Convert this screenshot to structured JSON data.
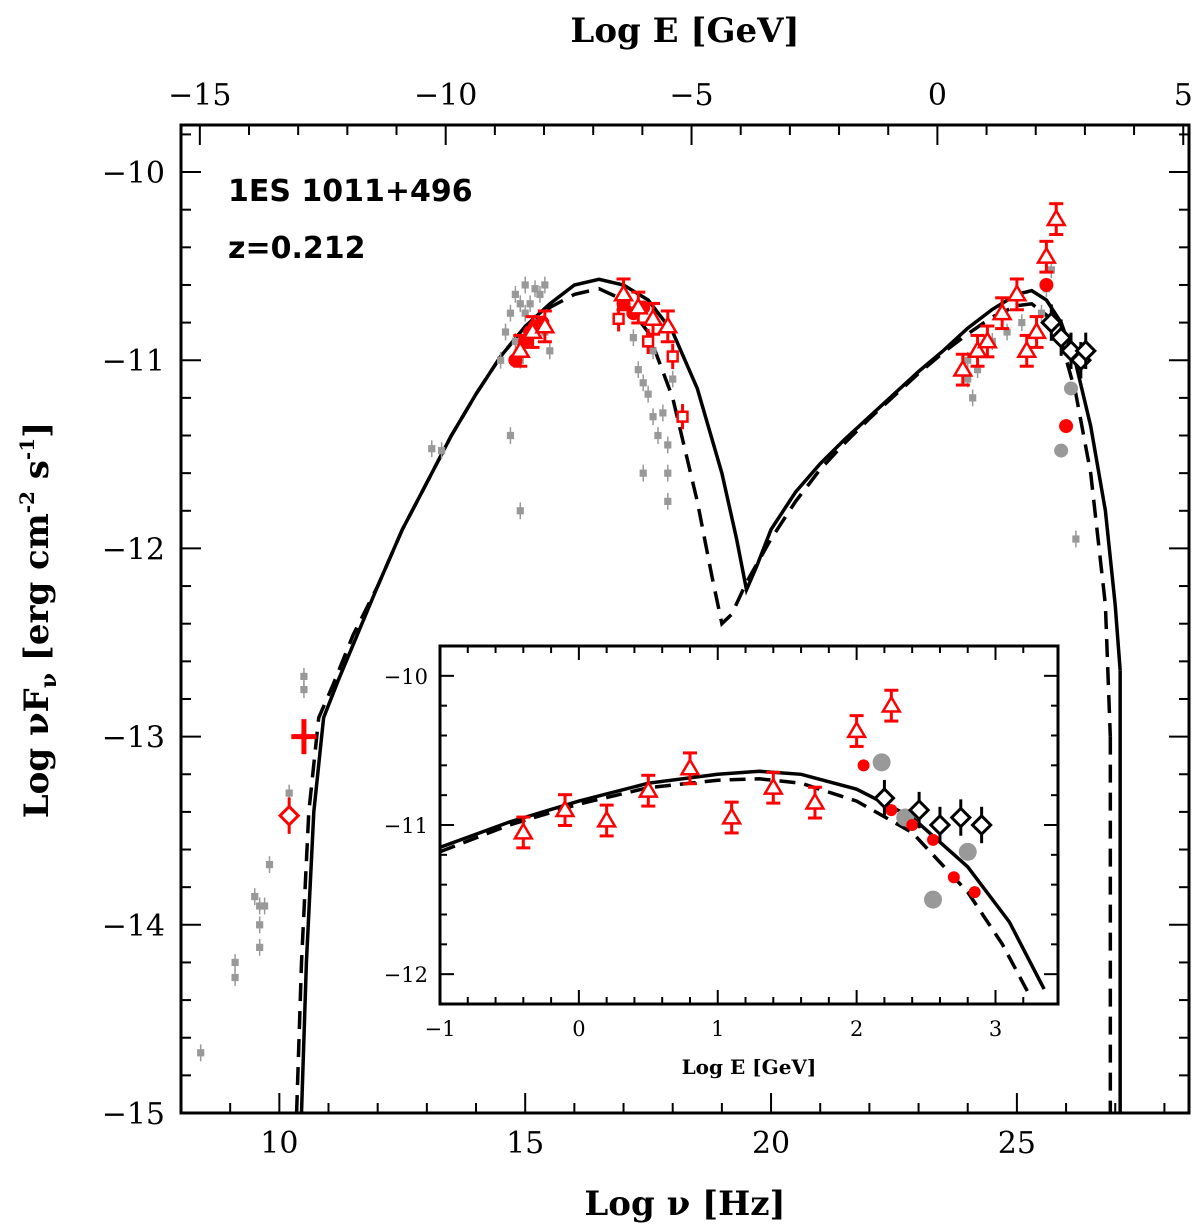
{
  "chart_data": {
    "type": "scatter",
    "annotations": [
      "1ES 1011+496",
      "z=0.212"
    ],
    "xlabel": "Log ν [Hz]",
    "ylabel": "Log νF",
    "ylabel_sub": "ν",
    "ylabel_units": "[erg cm",
    "ylabel_units_sup1": "-2",
    "ylabel_units_mid": " s",
    "ylabel_units_sup2": "-1",
    "ylabel_units_end": "]",
    "x2label": "Log E [GeV]",
    "xlim": [
      8,
      28.5
    ],
    "ylim": [
      -15,
      -9.75
    ],
    "xticks": [
      10,
      15,
      20,
      25
    ],
    "yticks": [
      -15,
      -14,
      -13,
      -12,
      -11,
      -10
    ],
    "x2ticks": [
      -15,
      -10,
      -5,
      0,
      5
    ],
    "x2_offset": 23.383,
    "colors": {
      "historical": "#999999",
      "simultaneous": "#ff0000",
      "vhe_black": "#000000",
      "model": "#000000"
    },
    "series": [
      {
        "marker": "square",
        "color": "#999999",
        "points": [
          [
            8.4,
            -14.68
          ],
          [
            9.1,
            -14.2
          ],
          [
            9.1,
            -14.28
          ],
          [
            9.5,
            -13.85
          ],
          [
            9.6,
            -13.9
          ],
          [
            9.6,
            -14.0
          ],
          [
            9.6,
            -14.12
          ],
          [
            9.7,
            -13.9
          ],
          [
            9.8,
            -13.68
          ],
          [
            10.2,
            -13.3
          ],
          [
            10.2,
            -13.42
          ],
          [
            10.5,
            -12.75
          ],
          [
            10.5,
            -12.68
          ],
          [
            13.1,
            -11.47
          ],
          [
            13.3,
            -11.48
          ],
          [
            14.7,
            -11.4
          ],
          [
            14.9,
            -11.8
          ],
          [
            14.5,
            -11.0
          ],
          [
            14.6,
            -10.85
          ],
          [
            14.7,
            -10.75
          ],
          [
            14.8,
            -10.9
          ],
          [
            14.9,
            -10.7
          ],
          [
            14.9,
            -11.0
          ],
          [
            15.0,
            -10.6
          ],
          [
            15.1,
            -10.7
          ],
          [
            15.2,
            -10.8
          ],
          [
            15.3,
            -10.65
          ],
          [
            15.4,
            -10.6
          ],
          [
            15.4,
            -10.85
          ],
          [
            15.5,
            -10.95
          ],
          [
            15.2,
            -10.62
          ],
          [
            15.0,
            -10.75
          ],
          [
            14.8,
            -10.65
          ],
          [
            17.2,
            -10.88
          ],
          [
            17.3,
            -11.05
          ],
          [
            17.4,
            -11.12
          ],
          [
            17.5,
            -11.18
          ],
          [
            17.6,
            -10.95
          ],
          [
            17.6,
            -11.3
          ],
          [
            17.7,
            -11.4
          ],
          [
            17.4,
            -11.6
          ],
          [
            17.9,
            -11.45
          ],
          [
            17.8,
            -11.28
          ],
          [
            18.0,
            -11.1
          ],
          [
            17.9,
            -11.6
          ],
          [
            17.9,
            -11.75
          ],
          [
            24.0,
            -11.0
          ],
          [
            24.0,
            -11.1
          ],
          [
            24.1,
            -11.2
          ],
          [
            24.2,
            -11.05
          ],
          [
            24.5,
            -10.9
          ],
          [
            24.8,
            -10.85
          ],
          [
            25.1,
            -10.8
          ],
          [
            25.5,
            -10.75
          ],
          [
            25.6,
            -10.62
          ],
          [
            25.7,
            -10.52
          ],
          [
            26.2,
            -11.95
          ]
        ]
      },
      {
        "marker": "circle",
        "color": "#999999",
        "points": [
          [
            25.9,
            -11.48
          ],
          [
            26.1,
            -11.15
          ]
        ]
      },
      {
        "marker": "circle",
        "color": "#ff0000",
        "points": [
          [
            14.8,
            -11.0
          ],
          [
            15.0,
            -10.9
          ],
          [
            15.1,
            -10.85
          ],
          [
            15.2,
            -10.82
          ],
          [
            15.35,
            -10.8
          ],
          [
            17.0,
            -10.7
          ],
          [
            17.2,
            -10.75
          ],
          [
            17.4,
            -10.72
          ],
          [
            25.6,
            -10.6
          ],
          [
            26.0,
            -11.35
          ]
        ]
      },
      {
        "marker": "triangle",
        "color": "#ff0000",
        "points": [
          [
            14.9,
            -10.95
          ],
          [
            15.15,
            -10.85
          ],
          [
            15.4,
            -10.82
          ],
          [
            17.0,
            -10.65
          ],
          [
            17.3,
            -10.72
          ],
          [
            17.6,
            -10.78
          ],
          [
            17.9,
            -10.82
          ],
          [
            23.9,
            -11.05
          ],
          [
            24.2,
            -10.95
          ],
          [
            24.4,
            -10.9
          ],
          [
            24.7,
            -10.75
          ],
          [
            25.0,
            -10.65
          ],
          [
            25.2,
            -10.95
          ],
          [
            25.4,
            -10.85
          ],
          [
            25.6,
            -10.45
          ],
          [
            25.8,
            -10.25
          ]
        ]
      },
      {
        "marker": "square-open",
        "color": "#ff0000",
        "points": [
          [
            16.9,
            -10.78
          ],
          [
            17.5,
            -10.9
          ],
          [
            18.0,
            -10.98
          ],
          [
            18.2,
            -11.3
          ]
        ]
      },
      {
        "marker": "diamond-open",
        "color": "#000000",
        "points": [
          [
            25.7,
            -10.8
          ],
          [
            25.9,
            -10.88
          ],
          [
            26.1,
            -10.95
          ],
          [
            26.3,
            -11.0
          ],
          [
            26.4,
            -10.95
          ]
        ]
      },
      {
        "marker": "diamond-open",
        "color": "#ff0000",
        "points": [
          [
            10.2,
            -13.42
          ]
        ]
      },
      {
        "marker": "cross",
        "color": "#ff0000",
        "points": [
          [
            10.5,
            -13.0
          ]
        ]
      }
    ],
    "model_solid": {
      "x": [
        10.45,
        10.55,
        10.7,
        10.9,
        11.2,
        11.6,
        12.0,
        12.5,
        13.0,
        13.5,
        14.0,
        14.5,
        15.0,
        15.5,
        16.0,
        16.5,
        17.0,
        17.5,
        18.0,
        18.5,
        19.0,
        19.3,
        19.5,
        19.7,
        20.0,
        20.5,
        21.0,
        21.5,
        22.0,
        22.5,
        23.0,
        23.5,
        24.0,
        24.5,
        25.0,
        25.3,
        25.6,
        25.9,
        26.2,
        26.5,
        26.8,
        27.0,
        27.1
      ],
      "y": [
        -15.0,
        -14.2,
        -13.4,
        -12.9,
        -12.7,
        -12.45,
        -12.2,
        -11.9,
        -11.65,
        -11.4,
        -11.18,
        -10.98,
        -10.82,
        -10.7,
        -10.6,
        -10.57,
        -10.6,
        -10.68,
        -10.85,
        -11.15,
        -11.6,
        -11.95,
        -12.22,
        -12.1,
        -11.9,
        -11.7,
        -11.55,
        -11.42,
        -11.3,
        -11.18,
        -11.06,
        -10.95,
        -10.83,
        -10.73,
        -10.65,
        -10.63,
        -10.68,
        -10.8,
        -11.02,
        -11.35,
        -11.8,
        -12.3,
        -12.65
      ]
    },
    "model_dashed": {
      "x": [
        10.35,
        10.45,
        10.6,
        10.8,
        11.1,
        11.5,
        12.0,
        12.5,
        13.0,
        13.5,
        14.0,
        14.5,
        15.0,
        15.5,
        16.0,
        16.5,
        17.0,
        17.5,
        18.0,
        18.5,
        18.8,
        19.0,
        19.2,
        19.5,
        20.0,
        20.5,
        21.0,
        21.5,
        22.0,
        22.5,
        23.0,
        23.5,
        24.0,
        24.5,
        25.0,
        25.3,
        25.6,
        25.9,
        26.2,
        26.5,
        26.8,
        26.9
      ],
      "y": [
        -15.0,
        -14.2,
        -13.4,
        -12.9,
        -12.72,
        -12.46,
        -12.2,
        -11.9,
        -11.65,
        -11.4,
        -11.18,
        -10.98,
        -10.82,
        -10.72,
        -10.65,
        -10.62,
        -10.68,
        -10.85,
        -11.2,
        -11.75,
        -12.15,
        -12.4,
        -12.35,
        -12.18,
        -11.95,
        -11.75,
        -11.58,
        -11.44,
        -11.31,
        -11.19,
        -11.07,
        -10.96,
        -10.86,
        -10.77,
        -10.71,
        -10.7,
        -10.76,
        -10.9,
        -11.18,
        -11.6,
        -12.3,
        -13.0
      ]
    },
    "inset": {
      "xlabel": "Log E [GeV]",
      "xlim": [
        -1,
        3.45
      ],
      "ylim": [
        -12.2,
        -9.8
      ],
      "xticks": [
        -1,
        0,
        1,
        2,
        3
      ],
      "yticks": [
        -12,
        -11,
        -10
      ],
      "points_red_tri": [
        [
          -0.4,
          -11.05
        ],
        [
          -0.1,
          -10.9
        ],
        [
          0.2,
          -10.97
        ],
        [
          0.5,
          -10.77
        ],
        [
          0.8,
          -10.62
        ],
        [
          1.1,
          -10.95
        ],
        [
          1.4,
          -10.75
        ],
        [
          1.7,
          -10.85
        ],
        [
          2.0,
          -10.37
        ],
        [
          2.25,
          -10.2
        ]
      ],
      "points_red_circle": [
        [
          2.05,
          -10.6
        ],
        [
          2.25,
          -10.9
        ],
        [
          2.4,
          -11.0
        ],
        [
          2.55,
          -11.1
        ],
        [
          2.7,
          -11.35
        ],
        [
          2.85,
          -11.45
        ]
      ],
      "points_grey_circle": [
        [
          2.18,
          -10.58
        ],
        [
          2.35,
          -10.95
        ],
        [
          2.55,
          -11.5
        ],
        [
          2.8,
          -11.18
        ]
      ],
      "points_black_diamond": [
        [
          2.2,
          -10.82
        ],
        [
          2.45,
          -10.9
        ],
        [
          2.6,
          -11.0
        ],
        [
          2.75,
          -10.95
        ],
        [
          2.9,
          -11.0
        ]
      ],
      "model_solid": {
        "x": [
          -1,
          -0.5,
          0,
          0.5,
          1,
          1.3,
          1.6,
          2,
          2.4,
          2.8,
          3.1,
          3.35
        ],
        "y": [
          -11.15,
          -10.98,
          -10.84,
          -10.72,
          -10.66,
          -10.64,
          -10.66,
          -10.76,
          -10.95,
          -11.28,
          -11.65,
          -12.1
        ]
      },
      "model_dashed": {
        "x": [
          -1,
          -0.5,
          0,
          0.5,
          1,
          1.3,
          1.6,
          2,
          2.4,
          2.8,
          3.05,
          3.25
        ],
        "y": [
          -11.18,
          -11.0,
          -10.86,
          -10.75,
          -10.7,
          -10.69,
          -10.72,
          -10.84,
          -11.05,
          -11.45,
          -11.8,
          -12.15
        ]
      }
    }
  }
}
